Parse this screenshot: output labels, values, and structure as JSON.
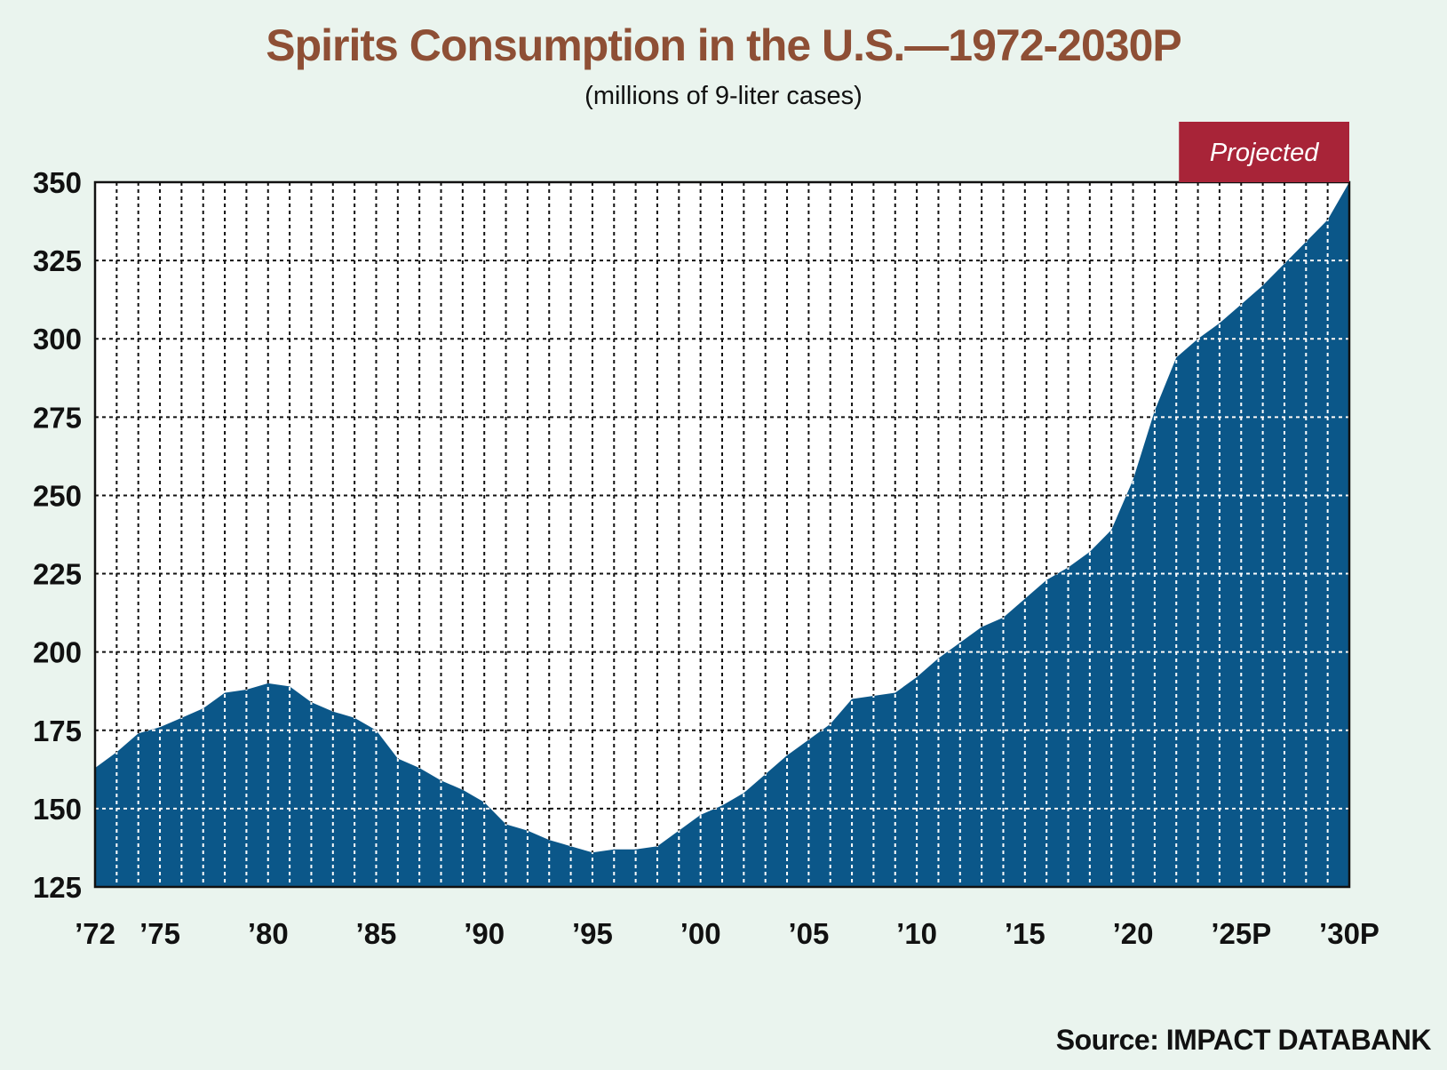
{
  "title": "Spirits Consumption in the U.S.—1972-2030P",
  "subtitle": "(millions of 9-liter cases)",
  "source": "Source: IMPACT DATABANK",
  "projected_label": "Projected",
  "colors": {
    "background": "#eaf4ee",
    "title": "#8e4f35",
    "area": "#0b5789",
    "projected_badge": "#a82438",
    "plot_background": "#ffffff"
  },
  "chart_data": {
    "type": "area",
    "title": "Spirits Consumption in the U.S.—1972-2030P",
    "subtitle": "(millions of 9-liter cases)",
    "xlabel": "",
    "ylabel": "",
    "x": [
      1972,
      1973,
      1974,
      1975,
      1976,
      1977,
      1978,
      1979,
      1980,
      1981,
      1982,
      1983,
      1984,
      1985,
      1986,
      1987,
      1988,
      1989,
      1990,
      1991,
      1992,
      1993,
      1994,
      1995,
      1996,
      1997,
      1998,
      1999,
      2000,
      2001,
      2002,
      2003,
      2004,
      2005,
      2006,
      2007,
      2008,
      2009,
      2010,
      2011,
      2012,
      2013,
      2014,
      2015,
      2016,
      2017,
      2018,
      2019,
      2020,
      2021,
      2022,
      2023,
      2024,
      2025,
      2026,
      2027,
      2028,
      2029,
      2030
    ],
    "values": [
      163,
      168,
      174,
      176,
      179,
      182,
      187,
      188,
      190,
      189,
      184,
      181,
      179,
      175,
      166,
      163,
      159,
      156,
      152,
      145,
      143,
      140,
      138,
      136,
      137,
      137,
      138,
      143,
      148,
      151,
      155,
      161,
      167,
      172,
      177,
      185,
      186,
      187,
      192,
      198,
      203,
      208,
      211,
      217,
      223,
      227,
      232,
      239,
      255,
      277,
      294,
      300,
      305,
      311,
      317,
      324,
      331,
      338,
      350
    ],
    "series": [
      {
        "values_ref": "values"
      }
    ],
    "xlim": [
      1972,
      2030
    ],
    "ylim": [
      125,
      350
    ],
    "yticks": [
      125,
      150,
      175,
      200,
      225,
      250,
      275,
      300,
      325,
      350
    ],
    "xtick_values": [
      1972,
      1975,
      1980,
      1985,
      1990,
      1995,
      2000,
      2005,
      2010,
      2015,
      2020,
      2025,
      2030
    ],
    "xtick_labels": [
      "’72",
      "’75",
      "’80",
      "’85",
      "’90",
      "’95",
      "’00",
      "’05",
      "’10",
      "’15",
      "’20",
      "’25P",
      "’30P"
    ],
    "projected_from": 2022,
    "grid": true,
    "legend": "none"
  }
}
